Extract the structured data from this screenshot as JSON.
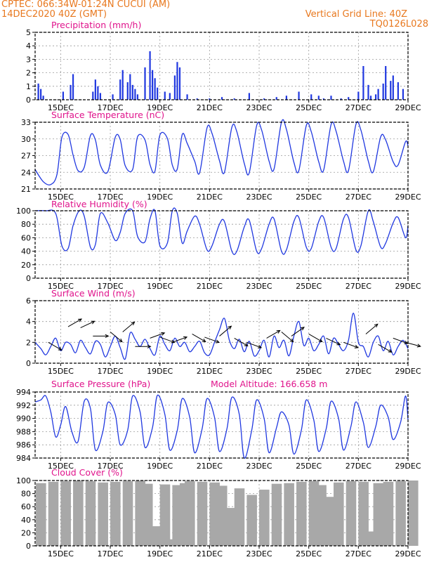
{
  "header": {
    "station_line": "CPTEC:  066:34W-01:24N   CUCUI (AM)",
    "date_line": "14DEC2020 40Z (GMT)",
    "grid_line_label": "Vertical Grid Line: 40Z",
    "run_id": "TQ0126L028"
  },
  "colors": {
    "header": "#e8781e",
    "title": "#e0148c",
    "line": "#2038e0",
    "cloud": "#a8a8a8",
    "grid": "#9a9a9a"
  },
  "chart_data": [
    {
      "type": "bar",
      "title": "Precipitation (mm/h)",
      "ylim": [
        0,
        5
      ],
      "yticks": [
        "0",
        "1",
        "2",
        "3",
        "4",
        "5"
      ],
      "xticks": [
        "15DEC",
        "17DEC",
        "19DEC",
        "21DEC",
        "23DEC",
        "25DEC",
        "27DEC",
        "29DEC"
      ],
      "grid": true,
      "x_days": [
        14.1,
        14.2,
        14.3,
        15.1,
        15.4,
        15.5,
        16.3,
        16.4,
        16.5,
        16.6,
        17.1,
        17.4,
        17.5,
        17.7,
        17.8,
        17.9,
        18.0,
        18.1,
        18.4,
        18.6,
        18.7,
        18.8,
        18.9,
        19.2,
        19.4,
        19.6,
        19.7,
        19.8,
        20.1,
        20.5,
        21.0,
        21.5,
        22.0,
        22.6,
        23.2,
        23.7,
        24.1,
        24.6,
        25.1,
        25.4,
        25.6,
        25.9,
        26.3,
        26.6,
        27.0,
        27.2,
        27.4,
        27.5,
        27.7,
        27.8,
        28.0,
        28.1,
        28.3,
        28.4,
        28.6,
        28.8
      ],
      "values": [
        1.2,
        0.8,
        0.3,
        0.6,
        1.1,
        1.9,
        0.6,
        1.5,
        1.0,
        0.5,
        0.4,
        1.5,
        2.2,
        1.3,
        1.9,
        1.1,
        0.8,
        0.4,
        2.4,
        3.6,
        2.2,
        1.6,
        0.9,
        0.6,
        0.5,
        1.8,
        2.8,
        2.4,
        0.4,
        0.1,
        0.1,
        0.2,
        0.1,
        0.5,
        0.1,
        0.2,
        0.3,
        0.6,
        0.4,
        0.3,
        0.1,
        0.3,
        0.1,
        0.2,
        0.6,
        2.5,
        1.1,
        0.3,
        0.4,
        0.8,
        1.2,
        2.5,
        1.4,
        1.8,
        1.3,
        0.8
      ]
    },
    {
      "type": "line",
      "title": "Surface Temperature (nC)",
      "ylim": [
        21,
        33
      ],
      "yticks": [
        "21",
        "24",
        "27",
        "30",
        "33"
      ],
      "xticks": [
        "15DEC",
        "17DEC",
        "19DEC",
        "21DEC",
        "23DEC",
        "25DEC",
        "27DEC",
        "29DEC"
      ],
      "grid": true,
      "x_days": [
        13.97,
        14.3,
        14.6,
        14.85,
        15.05,
        15.3,
        15.5,
        15.7,
        15.95,
        16.2,
        16.4,
        16.6,
        16.9,
        17.2,
        17.4,
        17.6,
        17.9,
        18.1,
        18.4,
        18.6,
        18.8,
        19.0,
        19.3,
        19.5,
        19.7,
        19.9,
        20.1,
        20.4,
        20.6,
        20.9,
        21.1,
        21.4,
        21.6,
        21.9,
        22.1,
        22.4,
        22.6,
        22.9,
        23.1,
        23.4,
        23.6,
        23.9,
        24.1,
        24.4,
        24.6,
        24.9,
        25.1,
        25.4,
        25.6,
        25.9,
        26.1,
        26.4,
        26.6,
        26.9,
        27.1,
        27.4,
        27.6,
        27.9,
        28.1,
        28.4,
        28.6,
        28.9,
        29.0
      ],
      "values": [
        24.5,
        22.3,
        21.8,
        23.6,
        30.3,
        30.8,
        27.1,
        24.3,
        24.9,
        30.6,
        29.8,
        25.3,
        24.1,
        30.3,
        29.9,
        25.2,
        24.5,
        30.4,
        29.8,
        25.4,
        24.2,
        30.7,
        30.1,
        25.3,
        24.6,
        30.8,
        29.2,
        26.0,
        23.9,
        32.0,
        31.0,
        26.1,
        24.0,
        32.1,
        31.3,
        25.6,
        23.9,
        32.4,
        31.6,
        26.0,
        24.6,
        33.0,
        31.7,
        25.8,
        24.3,
        32.4,
        31.3,
        25.9,
        24.4,
        32.6,
        31.4,
        26.0,
        24.3,
        32.6,
        31.6,
        26.0,
        24.1,
        30.4,
        29.8,
        25.9,
        25.3,
        29.5,
        28.7
      ]
    },
    {
      "type": "line",
      "title": "Relative Humidity (%)",
      "ylim": [
        0,
        100
      ],
      "yticks": [
        "0",
        "20",
        "40",
        "60",
        "80",
        "100"
      ],
      "xticks": [
        "15DEC",
        "17DEC",
        "19DEC",
        "21DEC",
        "23DEC",
        "25DEC",
        "27DEC",
        "29DEC"
      ],
      "grid": true,
      "x_days": [
        13.97,
        14.4,
        14.8,
        15.05,
        15.3,
        15.5,
        15.75,
        15.95,
        16.2,
        16.4,
        16.6,
        16.9,
        17.2,
        17.4,
        17.6,
        17.9,
        18.1,
        18.4,
        18.6,
        18.8,
        19.0,
        19.3,
        19.5,
        19.7,
        19.9,
        20.1,
        20.4,
        20.6,
        20.9,
        21.1,
        21.4,
        21.6,
        21.9,
        22.1,
        22.4,
        22.6,
        22.9,
        23.1,
        23.4,
        23.6,
        23.9,
        24.1,
        24.4,
        24.6,
        24.9,
        25.1,
        25.4,
        25.6,
        25.9,
        26.1,
        26.4,
        26.6,
        26.9,
        27.1,
        27.4,
        27.6,
        27.9,
        28.1,
        28.4,
        28.6,
        28.9,
        29.0
      ],
      "values": [
        100,
        100,
        96,
        48,
        44,
        78,
        100,
        92,
        46,
        50,
        96,
        82,
        56,
        68,
        96,
        100,
        62,
        54,
        88,
        100,
        48,
        52,
        100,
        96,
        52,
        70,
        92,
        80,
        42,
        48,
        80,
        84,
        40,
        40,
        76,
        86,
        40,
        44,
        80,
        88,
        40,
        42,
        84,
        90,
        46,
        44,
        84,
        90,
        46,
        44,
        88,
        90,
        42,
        48,
        100,
        84,
        46,
        52,
        82,
        90,
        60,
        78
      ]
    },
    {
      "type": "line",
      "title": "Surface Wind (m/s)",
      "ylim": [
        0,
        6
      ],
      "yticks": [
        "0",
        "2",
        "4",
        "6"
      ],
      "xticks": [
        "15DEC",
        "17DEC",
        "19DEC",
        "21DEC",
        "23DEC",
        "25DEC",
        "27DEC",
        "29DEC"
      ],
      "grid": true,
      "x_days": [
        13.97,
        14.2,
        14.4,
        14.6,
        14.8,
        15.0,
        15.2,
        15.4,
        15.6,
        15.8,
        16.0,
        16.2,
        16.4,
        16.6,
        16.8,
        17.0,
        17.2,
        17.4,
        17.6,
        17.8,
        18.0,
        18.2,
        18.4,
        18.6,
        18.8,
        19.0,
        19.2,
        19.4,
        19.6,
        19.8,
        20.0,
        20.2,
        20.4,
        20.6,
        20.8,
        21.0,
        21.2,
        21.4,
        21.6,
        21.8,
        22.0,
        22.2,
        22.4,
        22.6,
        22.8,
        23.0,
        23.2,
        23.4,
        23.6,
        23.8,
        24.0,
        24.2,
        24.4,
        24.6,
        24.8,
        25.0,
        25.2,
        25.4,
        25.6,
        25.8,
        26.0,
        26.2,
        26.4,
        26.6,
        26.8,
        27.0,
        27.2,
        27.4,
        27.6,
        27.8,
        28.0,
        28.2,
        28.4,
        28.6,
        28.8,
        29.0
      ],
      "values": [
        2.0,
        1.4,
        0.8,
        1.6,
        2.4,
        1.2,
        2.0,
        1.8,
        1.0,
        2.2,
        1.5,
        0.9,
        2.1,
        1.8,
        0.6,
        1.6,
        2.6,
        1.5,
        0.4,
        2.9,
        2.3,
        1.6,
        2.3,
        1.4,
        0.8,
        2.6,
        1.8,
        1.2,
        2.4,
        1.6,
        2.0,
        1.1,
        1.6,
        2.1,
        1.0,
        0.8,
        2.0,
        3.2,
        4.3,
        2.2,
        1.4,
        2.3,
        1.1,
        2.1,
        0.7,
        1.2,
        2.2,
        0.6,
        2.6,
        1.5,
        2.2,
        0.7,
        2.6,
        4.0,
        1.7,
        2.4,
        1.2,
        1.8,
        2.6,
        0.9,
        2.4,
        1.8,
        1.2,
        2.2,
        4.8,
        2.0,
        1.6,
        0.6,
        2.0,
        2.6,
        1.2,
        2.1,
        0.8,
        1.6,
        2.2,
        1.4
      ]
    },
    {
      "type": "line",
      "title": "Surface Pressure (hPa)",
      "ylim": [
        984,
        994
      ],
      "yticks": [
        "984",
        "986",
        "988",
        "990",
        "992",
        "994"
      ],
      "xticks": [
        "15DEC",
        "17DEC",
        "19DEC",
        "21DEC",
        "23DEC",
        "25DEC",
        "27DEC",
        "29DEC"
      ],
      "grid": true,
      "annotation": "Model Altitude: 166.658 m",
      "x_days": [
        13.97,
        14.2,
        14.4,
        14.6,
        14.8,
        15.0,
        15.2,
        15.45,
        15.7,
        15.95,
        16.2,
        16.4,
        16.7,
        16.9,
        17.2,
        17.4,
        17.7,
        17.9,
        18.2,
        18.4,
        18.7,
        18.9,
        19.2,
        19.4,
        19.7,
        19.9,
        20.2,
        20.4,
        20.7,
        20.9,
        21.2,
        21.4,
        21.7,
        21.9,
        22.2,
        22.4,
        22.7,
        22.9,
        23.2,
        23.4,
        23.7,
        23.9,
        24.2,
        24.4,
        24.7,
        24.9,
        25.2,
        25.4,
        25.7,
        25.9,
        26.2,
        26.4,
        26.7,
        26.9,
        27.2,
        27.4,
        27.7,
        27.9,
        28.2,
        28.4,
        28.7,
        28.9,
        29.0
      ],
      "values": [
        992.5,
        992.8,
        993.4,
        991.0,
        987.2,
        989.0,
        991.8,
        988.0,
        986.5,
        992.6,
        991.5,
        985.2,
        988.0,
        992.4,
        990.6,
        986.0,
        988.2,
        993.4,
        991.0,
        985.6,
        988.6,
        993.5,
        990.6,
        985.2,
        988.2,
        993.0,
        990.2,
        984.8,
        988.4,
        993.0,
        990.2,
        985.0,
        988.4,
        993.2,
        990.6,
        984.0,
        988.2,
        992.8,
        990.0,
        984.8,
        988.6,
        991.0,
        989.0,
        984.6,
        988.2,
        992.8,
        989.8,
        985.0,
        988.4,
        992.6,
        990.0,
        985.2,
        988.8,
        992.5,
        989.4,
        985.6,
        988.8,
        992.0,
        990.2,
        986.8,
        989.4,
        993.4,
        989.8
      ]
    },
    {
      "type": "bar",
      "title": "Cloud Cover (%)",
      "ylim": [
        0,
        100
      ],
      "yticks": [
        "0",
        "20",
        "40",
        "60",
        "80",
        "100"
      ],
      "xticks": [
        "15DEC",
        "17DEC",
        "19DEC",
        "21DEC",
        "23DEC",
        "25DEC",
        "27DEC",
        "29DEC"
      ],
      "grid": true,
      "x_days": [
        14.0,
        14.5,
        15.0,
        15.5,
        16.0,
        16.5,
        17.0,
        17.5,
        18.0,
        18.3,
        18.6,
        18.8,
        19.0,
        19.2,
        19.5,
        19.8,
        20.0,
        20.5,
        21.0,
        21.3,
        21.6,
        22.0,
        22.5,
        23.0,
        23.5,
        24.0,
        24.5,
        25.0,
        25.3,
        25.6,
        26.0,
        26.5,
        27.0,
        27.3,
        27.6,
        28.0,
        28.5,
        29.0
      ],
      "values": [
        96,
        98,
        99,
        100,
        99,
        97,
        98,
        99,
        100,
        95,
        30,
        20,
        94,
        10,
        93,
        96,
        99,
        98,
        97,
        92,
        58,
        88,
        78,
        86,
        95,
        96,
        98,
        99,
        93,
        75,
        97,
        99,
        98,
        22,
        96,
        98,
        99,
        100
      ]
    }
  ]
}
